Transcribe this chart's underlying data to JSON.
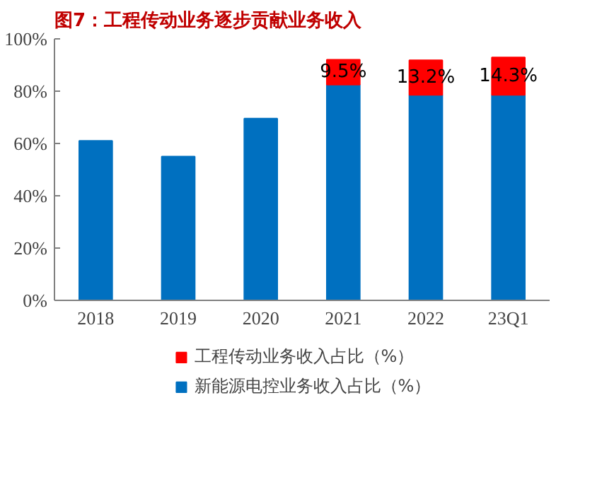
{
  "chart_data": {
    "type": "bar",
    "title": "图7：工程传动业务逐步贡献业务收入",
    "stacked": true,
    "categories": [
      "2018",
      "2019",
      "2020",
      "2021",
      "2022",
      "23Q1"
    ],
    "series": [
      {
        "name": "新能源电控业务收入占比（%）",
        "color": "#0070c0",
        "values": [
          61,
          55,
          69.5,
          82.5,
          78.6,
          78.6
        ]
      },
      {
        "name": "工程传动业务收入占比（%）",
        "color": "#ff0000",
        "values": [
          null,
          null,
          null,
          9.5,
          13.2,
          14.3
        ],
        "value_labels": [
          null,
          null,
          null,
          "9.5%",
          "13.2%",
          "14.3%"
        ]
      }
    ],
    "ylim": [
      0,
      100
    ],
    "yticks": [
      {
        "value": 0,
        "label": "0%"
      },
      {
        "value": 20,
        "label": "20%"
      },
      {
        "value": 40,
        "label": "40%"
      },
      {
        "value": 60,
        "label": "60%"
      },
      {
        "value": 80,
        "label": "80%"
      },
      {
        "value": 100,
        "label": "100%"
      }
    ],
    "grid": false,
    "legend": "bottom"
  }
}
